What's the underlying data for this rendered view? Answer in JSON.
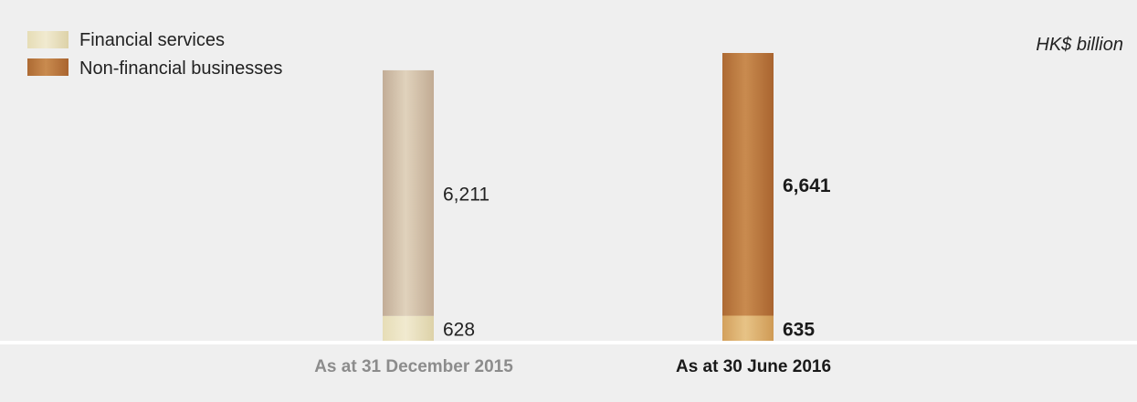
{
  "unit_label": "HK$ billion",
  "legend": [
    {
      "label": "Financial services"
    },
    {
      "label": "Non-financial businesses"
    }
  ],
  "colors": {
    "background": "#efefef",
    "divider": "#ffffff",
    "fin_2015": "#e8dfb8",
    "nonfin_2015": "#cdb8a0",
    "fin_2016": "#dcb06e",
    "nonfin_2016": "#b8743a",
    "label_muted": "#8c8c8c",
    "label_bold": "#1a1a1a",
    "text": "#222222"
  },
  "chart_data": {
    "type": "bar",
    "stacked": true,
    "categories": [
      "As at 31 December 2015",
      "As at 30 June 2016"
    ],
    "series": [
      {
        "name": "Financial services",
        "values": [
          628,
          635
        ]
      },
      {
        "name": "Non-financial businesses",
        "values": [
          6211,
          6641
        ]
      }
    ],
    "value_labels": [
      {
        "financial": "628",
        "non_financial": "6,211"
      },
      {
        "financial": "635",
        "non_financial": "6,641"
      }
    ],
    "ylim": [
      0,
      7276
    ],
    "xlabel": "",
    "ylabel": "",
    "grid": false,
    "legend_position": "top-left"
  }
}
